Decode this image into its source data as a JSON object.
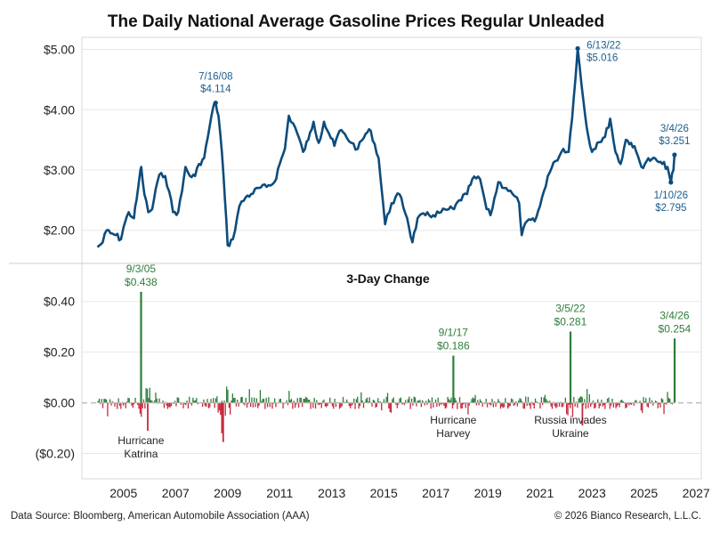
{
  "chart_title": "The Daily National Average Gasoline Prices Regular Unleaded",
  "footer": {
    "source": "Data Source: Bloomberg, American Automobile Association (AAA)",
    "copyright": "© 2026 Bianco Research, L.L.C."
  },
  "colors": {
    "price_line": "#0d4c7c",
    "price_annotation": "#1a5e8e",
    "positive_bar": "#2e7d3a",
    "negative_bar": "#c8283b",
    "change_annotation": "#2e7d3a",
    "event_label": "#222222",
    "grid": "#e8e8e8",
    "zero_line": "#bbbbbb"
  },
  "chart_data": [
    {
      "type": "line",
      "title": "",
      "xlim": [
        2003.4,
        2027.2
      ],
      "ylim": [
        1.45,
        5.2
      ],
      "yticks": [
        {
          "value": 2.0,
          "label": "$2.00"
        },
        {
          "value": 3.0,
          "label": "$3.00"
        },
        {
          "value": 4.0,
          "label": "$4.00"
        },
        {
          "value": 5.0,
          "label": "$5.00"
        }
      ],
      "grid": true,
      "series": [
        {
          "x": [
            2004.0,
            2004.2,
            2004.35,
            2004.5,
            2004.7,
            2004.9,
            2005.0,
            2005.2,
            2005.4,
            2005.5,
            2005.62,
            2005.68,
            2005.8,
            2005.95,
            2006.1,
            2006.3,
            2006.45,
            2006.6,
            2006.75,
            2006.9,
            2007.1,
            2007.25,
            2007.38,
            2007.55,
            2007.75,
            2007.9,
            2008.1,
            2008.3,
            2008.45,
            2008.54,
            2008.65,
            2008.78,
            2008.9,
            2009.0,
            2009.2,
            2009.45,
            2009.7,
            2009.9,
            2010.2,
            2010.5,
            2010.8,
            2011.0,
            2011.2,
            2011.35,
            2011.6,
            2011.9,
            2012.1,
            2012.3,
            2012.5,
            2012.7,
            2012.9,
            2013.1,
            2013.3,
            2013.5,
            2013.75,
            2014.0,
            2014.3,
            2014.5,
            2014.8,
            2015.05,
            2015.3,
            2015.6,
            2015.9,
            2016.1,
            2016.3,
            2016.6,
            2016.9,
            2017.2,
            2017.5,
            2017.7,
            2017.9,
            2018.2,
            2018.4,
            2018.7,
            2018.95,
            2019.1,
            2019.4,
            2019.7,
            2019.95,
            2020.2,
            2020.3,
            2020.5,
            2020.8,
            2021.0,
            2021.3,
            2021.6,
            2021.9,
            2022.1,
            2022.3,
            2022.45,
            2022.6,
            2022.8,
            2023.0,
            2023.2,
            2023.5,
            2023.7,
            2023.9,
            2024.1,
            2024.3,
            2024.5,
            2024.7,
            2024.9,
            2025.1,
            2025.3,
            2025.5,
            2025.7,
            2025.9,
            2026.03,
            2026.13,
            2026.17
          ],
          "y": [
            1.72,
            1.8,
            2.0,
            1.95,
            1.92,
            1.85,
            2.05,
            2.3,
            2.2,
            2.5,
            2.9,
            3.05,
            2.6,
            2.3,
            2.35,
            2.8,
            2.95,
            2.9,
            2.65,
            2.3,
            2.3,
            2.65,
            3.05,
            2.9,
            2.9,
            3.1,
            3.2,
            3.7,
            4.05,
            4.114,
            3.9,
            3.3,
            2.5,
            1.75,
            1.85,
            2.4,
            2.55,
            2.6,
            2.7,
            2.72,
            2.8,
            3.1,
            3.35,
            3.9,
            3.7,
            3.3,
            3.5,
            3.8,
            3.45,
            3.8,
            3.6,
            3.4,
            3.65,
            3.6,
            3.45,
            3.35,
            3.6,
            3.65,
            3.2,
            2.1,
            2.45,
            2.6,
            2.2,
            1.8,
            2.2,
            2.25,
            2.25,
            2.3,
            2.35,
            2.35,
            2.5,
            2.6,
            2.85,
            2.85,
            2.35,
            2.25,
            2.8,
            2.7,
            2.6,
            2.45,
            1.92,
            2.15,
            2.15,
            2.4,
            2.9,
            3.15,
            3.35,
            3.3,
            4.2,
            5.016,
            4.4,
            3.7,
            3.3,
            3.45,
            3.55,
            3.85,
            3.3,
            3.1,
            3.5,
            3.45,
            3.3,
            3.05,
            3.15,
            3.18,
            3.15,
            3.1,
            3.05,
            2.795,
            3.0,
            3.251
          ]
        }
      ],
      "annotations": [
        {
          "x": 2008.54,
          "y": 4.114,
          "date": "7/16/08",
          "value": "$4.114",
          "anchor": "middle",
          "pos": "above"
        },
        {
          "x": 2022.45,
          "y": 5.016,
          "date": "6/13/22",
          "value": "$5.016",
          "anchor": "start",
          "pos": "right"
        },
        {
          "x": 2026.17,
          "y": 3.251,
          "date": "3/4/26",
          "value": "$3.251",
          "anchor": "middle",
          "pos": "above"
        },
        {
          "x": 2026.03,
          "y": 2.795,
          "date": "1/10/26",
          "value": "$2.795",
          "anchor": "middle",
          "pos": "below"
        }
      ]
    },
    {
      "type": "bar",
      "title": "3-Day Change",
      "ylim": [
        -0.3,
        0.55
      ],
      "yticks": [
        {
          "value": 0.4,
          "label": "$0.40"
        },
        {
          "value": 0.2,
          "label": "$0.20"
        },
        {
          "value": 0.0,
          "label": "$0.00"
        },
        {
          "value": -0.2,
          "label": "($0.20)"
        }
      ],
      "xticks": [
        2005,
        2007,
        2009,
        2011,
        2013,
        2015,
        2017,
        2019,
        2021,
        2023,
        2025,
        2027
      ],
      "grid": true,
      "spikes": [
        {
          "x": 2005.67,
          "value": 0.438,
          "date": "9/3/05",
          "label": "$0.438"
        },
        {
          "x": 2017.67,
          "value": 0.186,
          "date": "9/1/17",
          "label": "$0.186"
        },
        {
          "x": 2022.17,
          "value": 0.281,
          "date": "3/5/22",
          "label": "$0.281"
        },
        {
          "x": 2026.17,
          "value": 0.254,
          "date": "3/4/26",
          "label": "$0.254"
        }
      ],
      "events": [
        {
          "x": 2005.67,
          "lines": [
            "Hurricane",
            "Katrina"
          ]
        },
        {
          "x": 2017.67,
          "lines": [
            "Hurricane",
            "Harvey"
          ]
        },
        {
          "x": 2022.17,
          "lines": [
            "Russia invades",
            "Ukraine"
          ]
        }
      ]
    }
  ]
}
